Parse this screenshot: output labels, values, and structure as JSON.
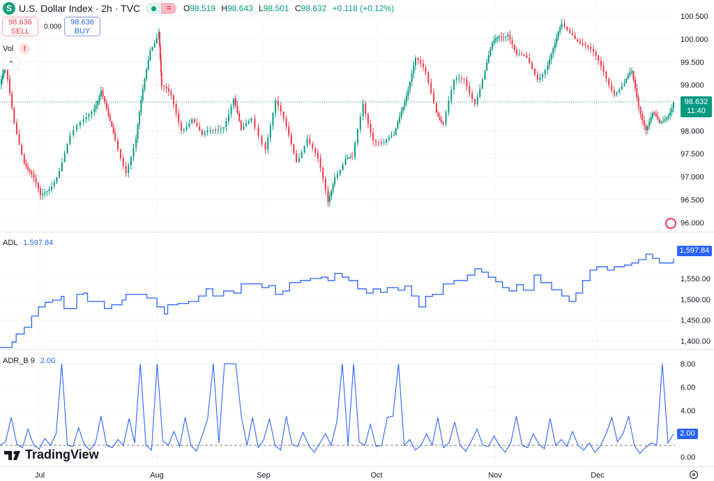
{
  "header": {
    "symbol_icon": "S",
    "title": "U.S. Dollar Index · 2h · TVC",
    "market_status": "market-open-dot-icon",
    "open": {
      "label": "O",
      "value": "98.519"
    },
    "high": {
      "label": "H",
      "value": "98.643"
    },
    "low": {
      "label": "L",
      "value": "98.501"
    },
    "close": {
      "label": "C",
      "value": "98.632"
    },
    "change": "+0.118 (+0.12%)"
  },
  "trade": {
    "sell_price": "98.636",
    "sell_label": "SELL",
    "spread": "0.000",
    "buy_price": "98.636",
    "buy_label": "BUY"
  },
  "volume": {
    "label": "Vol",
    "warning": "!"
  },
  "collapse_icon": "^",
  "price_axis": {
    "ticks": [
      "100.500",
      "100.000",
      "99.500",
      "99.000",
      "98.000",
      "97.500",
      "97.000",
      "96.500",
      "96.000"
    ],
    "tick_values": [
      100.5,
      100,
      99.5,
      99,
      98,
      97.5,
      97,
      96.5,
      96
    ],
    "current_price": "98.632",
    "countdown": "11:40"
  },
  "adl": {
    "label": "ADL",
    "value": "1,597.84",
    "ticks": [
      "1,550.00",
      "1,500.00",
      "1,450.00",
      "1,400.00"
    ],
    "tick_values": [
      1550,
      1500,
      1450,
      1400
    ]
  },
  "adr": {
    "label": "ADR_B 9",
    "value": "2.00",
    "ticks": [
      "8.00",
      "6.00",
      "4.00",
      "0.00"
    ],
    "tick_values": [
      8,
      6,
      4,
      0
    ]
  },
  "time_axis": {
    "labels": [
      "Jul",
      "Aug",
      "Sep",
      "Oct",
      "Nov",
      "Dec"
    ]
  },
  "logo_text": "TradingView",
  "colors": {
    "up": "#089981",
    "down": "#f23645",
    "indicator": "#2962ff",
    "grid": "#f0f3fa"
  },
  "chart_data": [
    {
      "type": "candlestick",
      "title": "U.S. Dollar Index 2h",
      "ylim": [
        95.8,
        100.85
      ],
      "note": "key close path, t = fraction of visible time range",
      "path": [
        [
          0,
          99.0
        ],
        [
          0.008,
          99.3
        ],
        [
          0.021,
          98.2
        ],
        [
          0.036,
          97.4
        ],
        [
          0.047,
          97.0
        ],
        [
          0.06,
          96.5
        ],
        [
          0.073,
          96.8
        ],
        [
          0.088,
          97.2
        ],
        [
          0.104,
          97.8
        ],
        [
          0.124,
          98.2
        ],
        [
          0.14,
          98.6
        ],
        [
          0.15,
          98.9
        ],
        [
          0.161,
          98.2
        ],
        [
          0.171,
          97.8
        ],
        [
          0.187,
          97.2
        ],
        [
          0.202,
          97.8
        ],
        [
          0.212,
          98.8
        ],
        [
          0.223,
          99.8
        ],
        [
          0.236,
          100.25
        ],
        [
          0.24,
          98.9
        ],
        [
          0.254,
          98.7
        ],
        [
          0.269,
          98.1
        ],
        [
          0.285,
          98.3
        ],
        [
          0.3,
          97.8
        ],
        [
          0.316,
          98.0
        ],
        [
          0.332,
          98.2
        ],
        [
          0.347,
          98.7
        ],
        [
          0.358,
          97.9
        ],
        [
          0.373,
          98.3
        ],
        [
          0.394,
          97.7
        ],
        [
          0.409,
          98.6
        ],
        [
          0.425,
          98.0
        ],
        [
          0.44,
          97.4
        ],
        [
          0.456,
          97.9
        ],
        [
          0.472,
          97.3
        ],
        [
          0.487,
          96.4
        ],
        [
          0.497,
          97.1
        ],
        [
          0.513,
          97.4
        ],
        [
          0.523,
          97.3
        ],
        [
          0.539,
          98.6
        ],
        [
          0.554,
          97.9
        ],
        [
          0.57,
          97.7
        ],
        [
          0.585,
          97.8
        ],
        [
          0.596,
          98.5
        ],
        [
          0.606,
          99.0
        ],
        [
          0.617,
          99.5
        ],
        [
          0.632,
          99.2
        ],
        [
          0.648,
          98.5
        ],
        [
          0.658,
          98.2
        ],
        [
          0.674,
          99.0
        ],
        [
          0.689,
          99.1
        ],
        [
          0.705,
          98.7
        ],
        [
          0.72,
          99.3
        ],
        [
          0.731,
          99.8
        ],
        [
          0.741,
          100.1
        ],
        [
          0.754,
          100.2
        ],
        [
          0.767,
          99.6
        ],
        [
          0.782,
          99.5
        ],
        [
          0.798,
          99.2
        ],
        [
          0.813,
          99.5
        ],
        [
          0.824,
          99.8
        ],
        [
          0.834,
          100.3
        ],
        [
          0.85,
          100.2
        ],
        [
          0.865,
          99.9
        ],
        [
          0.881,
          99.6
        ],
        [
          0.896,
          99.3
        ],
        [
          0.912,
          98.9
        ],
        [
          0.927,
          99.0
        ],
        [
          0.938,
          99.2
        ],
        [
          0.948,
          98.6
        ],
        [
          0.959,
          98.1
        ],
        [
          0.969,
          98.3
        ],
        [
          0.979,
          98.1
        ],
        [
          0.99,
          98.4
        ],
        [
          1.0,
          98.632
        ]
      ]
    },
    {
      "type": "line",
      "title": "ADL",
      "ylim": [
        1381,
        1660
      ],
      "step": true,
      "points": [
        [
          0,
          1385
        ],
        [
          0.018,
          1398
        ],
        [
          0.024,
          1417
        ],
        [
          0.036,
          1433
        ],
        [
          0.047,
          1460
        ],
        [
          0.057,
          1482
        ],
        [
          0.067,
          1493
        ],
        [
          0.078,
          1498
        ],
        [
          0.091,
          1507
        ],
        [
          0.095,
          1478
        ],
        [
          0.114,
          1512
        ],
        [
          0.124,
          1515
        ],
        [
          0.13,
          1495
        ],
        [
          0.155,
          1478
        ],
        [
          0.166,
          1487
        ],
        [
          0.181,
          1498
        ],
        [
          0.187,
          1512
        ],
        [
          0.207,
          1512
        ],
        [
          0.218,
          1503
        ],
        [
          0.233,
          1482
        ],
        [
          0.244,
          1465
        ],
        [
          0.249,
          1487
        ],
        [
          0.264,
          1490
        ],
        [
          0.28,
          1495
        ],
        [
          0.295,
          1508
        ],
        [
          0.306,
          1525
        ],
        [
          0.316,
          1508
        ],
        [
          0.332,
          1520
        ],
        [
          0.347,
          1515
        ],
        [
          0.358,
          1537
        ],
        [
          0.373,
          1537
        ],
        [
          0.389,
          1528
        ],
        [
          0.399,
          1533
        ],
        [
          0.409,
          1512
        ],
        [
          0.42,
          1520
        ],
        [
          0.43,
          1540
        ],
        [
          0.446,
          1545
        ],
        [
          0.461,
          1550
        ],
        [
          0.477,
          1553
        ],
        [
          0.487,
          1545
        ],
        [
          0.497,
          1562
        ],
        [
          0.508,
          1553
        ],
        [
          0.518,
          1545
        ],
        [
          0.531,
          1525
        ],
        [
          0.544,
          1515
        ],
        [
          0.554,
          1525
        ],
        [
          0.565,
          1517
        ],
        [
          0.575,
          1528
        ],
        [
          0.591,
          1522
        ],
        [
          0.601,
          1532
        ],
        [
          0.611,
          1508
        ],
        [
          0.622,
          1482
        ],
        [
          0.632,
          1507
        ],
        [
          0.642,
          1512
        ],
        [
          0.658,
          1537
        ],
        [
          0.674,
          1545
        ],
        [
          0.684,
          1545
        ],
        [
          0.694,
          1558
        ],
        [
          0.705,
          1573
        ],
        [
          0.715,
          1565
        ],
        [
          0.725,
          1553
        ],
        [
          0.736,
          1542
        ],
        [
          0.746,
          1528
        ],
        [
          0.756,
          1520
        ],
        [
          0.767,
          1535
        ],
        [
          0.777,
          1522
        ],
        [
          0.793,
          1558
        ],
        [
          0.803,
          1540
        ],
        [
          0.819,
          1523
        ],
        [
          0.834,
          1508
        ],
        [
          0.845,
          1495
        ],
        [
          0.855,
          1515
        ],
        [
          0.865,
          1545
        ],
        [
          0.876,
          1570
        ],
        [
          0.886,
          1578
        ],
        [
          0.902,
          1570
        ],
        [
          0.912,
          1578
        ],
        [
          0.927,
          1582
        ],
        [
          0.938,
          1587
        ],
        [
          0.948,
          1595
        ],
        [
          0.959,
          1608
        ],
        [
          0.969,
          1598
        ],
        [
          0.979,
          1587
        ],
        [
          0.993,
          1587
        ],
        [
          1.0,
          1597.84
        ]
      ]
    },
    {
      "type": "line",
      "title": "ADR_B 9",
      "ylim": [
        -0.8,
        9.2
      ],
      "reference_line": 1.0,
      "values": [
        1.0,
        1.3,
        3.4,
        1.1,
        0.8,
        2.4,
        1.0,
        0.7,
        1.6,
        1.0,
        2.0,
        8.0,
        1.0,
        0.9,
        2.5,
        1.1,
        0.6,
        1.2,
        3.5,
        1.0,
        0.8,
        1.5,
        1.0,
        3.3,
        1.2,
        8.0,
        1.0,
        0.6,
        8.0,
        1.4,
        1.0,
        2.2,
        0.9,
        3.4,
        1.0,
        0.5,
        1.8,
        3.3,
        8.0,
        1.2,
        8.0,
        8.0,
        8.0,
        3.5,
        1.0,
        3.4,
        0.8,
        1.5,
        3.3,
        1.0,
        0.6,
        3.5,
        1.1,
        0.9,
        2.1,
        1.0,
        0.4,
        1.2,
        2.0,
        1.0,
        3.0,
        8.0,
        1.0,
        8.0,
        1.3,
        1.0,
        2.8,
        0.9,
        1.0,
        3.4,
        3.5,
        8.0,
        1.0,
        1.5,
        0.6,
        1.0,
        2.0,
        1.0,
        3.4,
        0.8,
        1.2,
        3.0,
        1.0,
        0.5,
        1.4,
        2.4,
        1.0,
        0.9,
        1.8,
        1.0,
        0.4,
        1.2,
        3.5,
        1.0,
        0.8,
        2.0,
        1.1,
        0.7,
        3.3,
        1.0,
        1.5,
        0.9,
        2.2,
        1.0,
        0.6,
        1.2,
        0.4,
        1.0,
        2.0,
        3.4,
        1.3,
        2.0,
        3.5,
        1.0,
        0.3,
        0.8,
        1.2,
        1.0,
        8.0,
        1.2,
        2.0
      ]
    }
  ]
}
